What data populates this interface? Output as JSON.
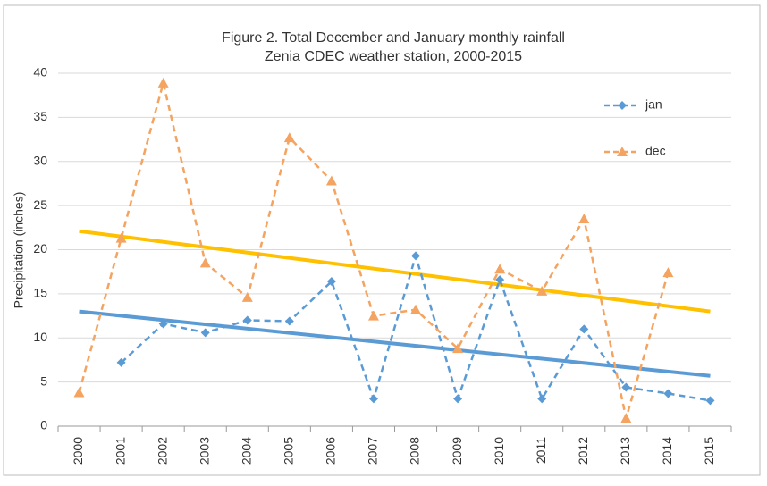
{
  "chart_data": {
    "type": "line",
    "title": "Figure 2.  Total December and January monthly rainfall",
    "subtitle": "Zenia CDEC weather station, 2000-2015",
    "y_label": "Precipitation (inches)",
    "categories": [
      "2000",
      "2001",
      "2002",
      "2003",
      "2004",
      "2005",
      "2006",
      "2007",
      "2008",
      "2009",
      "2010",
      "2011",
      "2012",
      "2013",
      "2014",
      "2015"
    ],
    "series": [
      {
        "name": "jan",
        "color": "#5b9bd5",
        "marker": "diamond",
        "values": [
          null,
          7.2,
          11.6,
          10.6,
          12.0,
          11.9,
          16.4,
          3.1,
          19.3,
          3.1,
          16.6,
          3.1,
          11.0,
          4.4,
          3.7,
          2.9
        ]
      },
      {
        "name": "dec",
        "color": "#f4a460",
        "marker": "triangle",
        "values": [
          3.8,
          21.3,
          38.9,
          18.5,
          14.6,
          32.7,
          27.8,
          12.5,
          13.2,
          8.8,
          17.8,
          15.3,
          23.5,
          0.9,
          17.4,
          null
        ]
      }
    ],
    "trendlines": [
      {
        "color": "#ffc000",
        "x": [
          "2000",
          "2015"
        ],
        "values": [
          22.1,
          13.0
        ]
      },
      {
        "color": "#5b9bd5",
        "x": [
          "2000",
          "2015"
        ],
        "values": [
          13.0,
          5.7
        ]
      }
    ],
    "ylim": [
      0,
      40
    ],
    "yticks": [
      0,
      5,
      10,
      15,
      20,
      25,
      30,
      35,
      40
    ],
    "grid": true,
    "legend": "upper right"
  }
}
